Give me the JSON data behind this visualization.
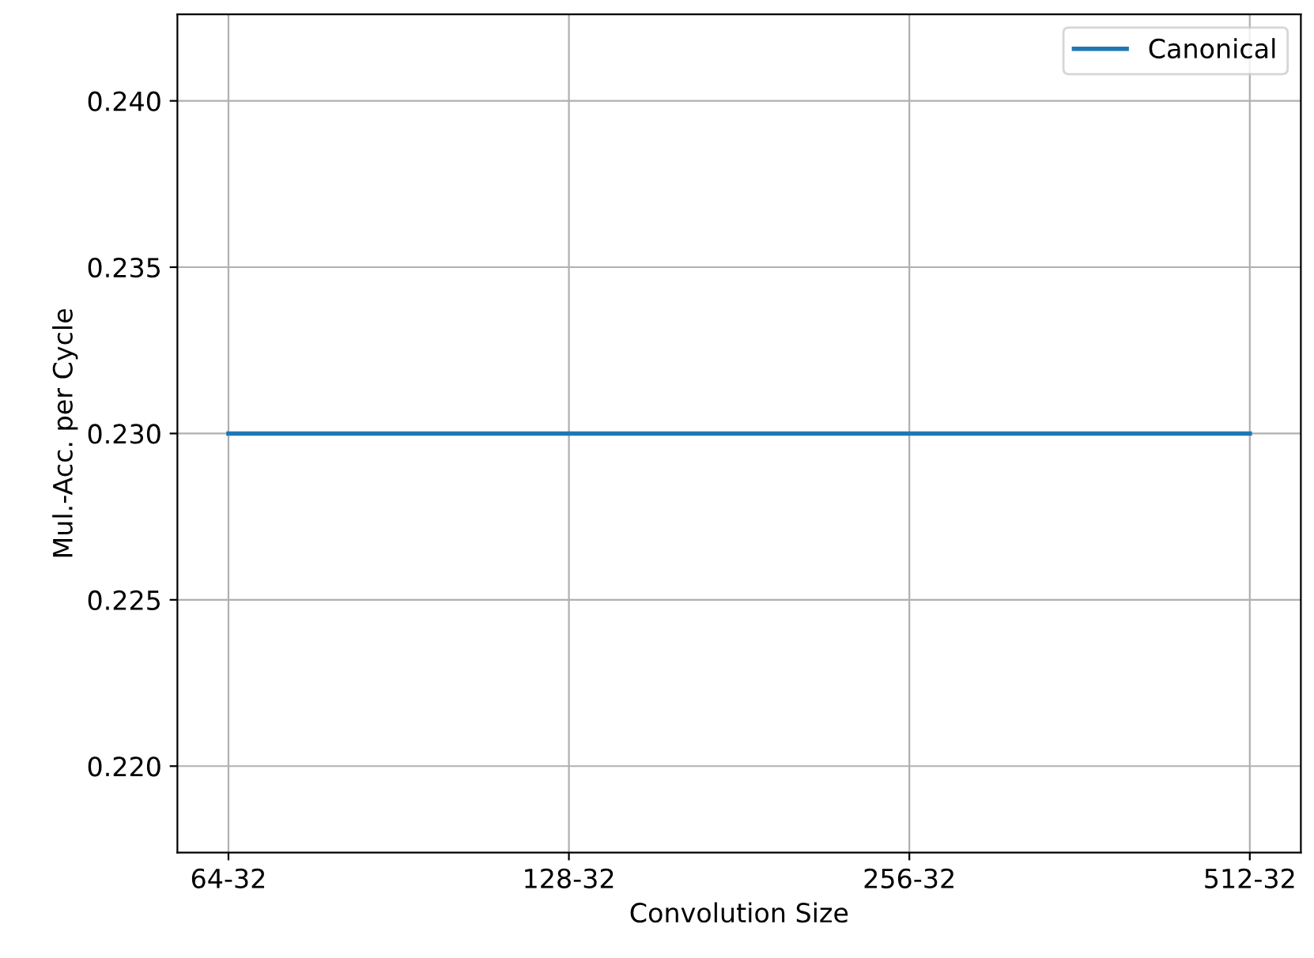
{
  "chart_data": {
    "type": "line",
    "xlabel": "Convolution Size",
    "ylabel": "Mul.-Acc. per Cycle",
    "categories": [
      "64-32",
      "128-32",
      "256-32",
      "512-32"
    ],
    "series": [
      {
        "name": "Canonical",
        "color": "#1f77b4",
        "values": [
          0.23,
          0.23,
          0.23,
          0.23
        ]
      }
    ],
    "ylim": [
      0.2174,
      0.2426
    ],
    "yticks": [
      {
        "value": 0.22,
        "label": "0.220"
      },
      {
        "value": 0.225,
        "label": "0.225"
      },
      {
        "value": 0.23,
        "label": "0.230"
      },
      {
        "value": 0.235,
        "label": "0.235"
      },
      {
        "value": 0.24,
        "label": "0.240"
      }
    ],
    "grid": true,
    "legend": "top right",
    "marker": "none",
    "line_style": "solid"
  }
}
